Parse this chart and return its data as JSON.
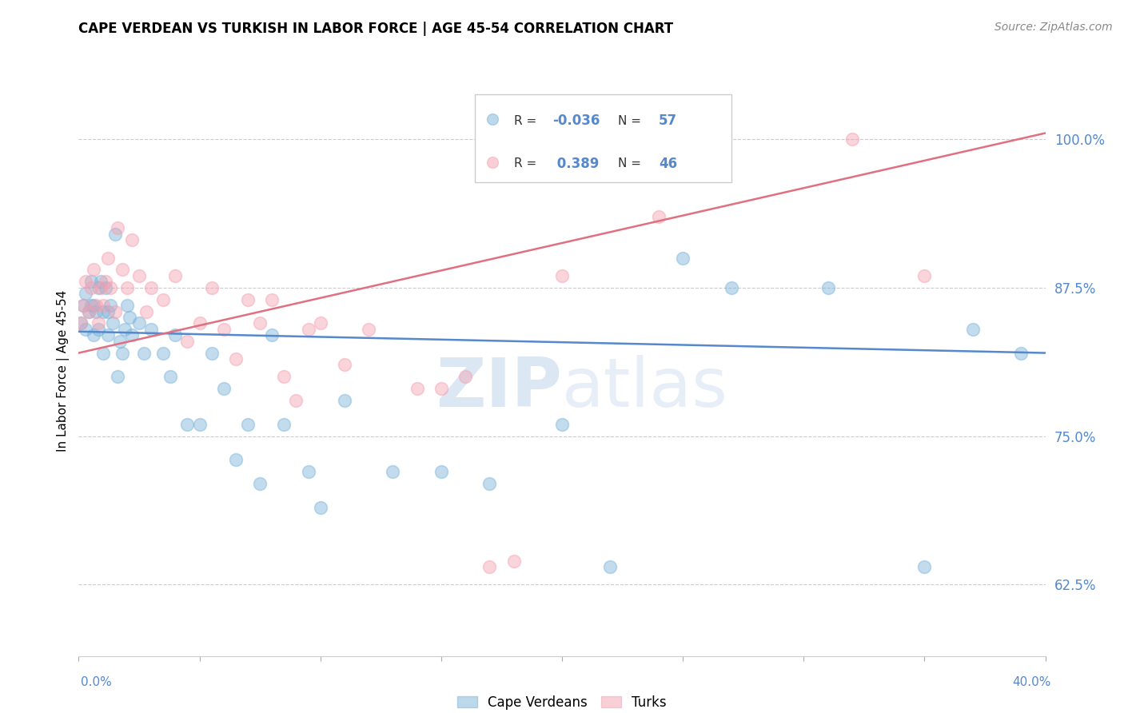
{
  "title": "CAPE VERDEAN VS TURKISH IN LABOR FORCE | AGE 45-54 CORRELATION CHART",
  "source": "Source: ZipAtlas.com",
  "ylabel": "In Labor Force | Age 45-54",
  "ytick_values": [
    0.625,
    0.75,
    0.875,
    1.0
  ],
  "xlim": [
    0.0,
    0.4
  ],
  "ylim": [
    0.565,
    1.045
  ],
  "blue_color": "#7ab3d9",
  "pink_color": "#f4a0b0",
  "blue_line_color": "#5588cc",
  "pink_line_color": "#e07080",
  "watermark_zip": "ZIP",
  "watermark_atlas": "atlas",
  "cape_verdean_x": [
    0.001,
    0.002,
    0.003,
    0.003,
    0.004,
    0.005,
    0.005,
    0.006,
    0.006,
    0.007,
    0.008,
    0.008,
    0.009,
    0.01,
    0.01,
    0.011,
    0.012,
    0.012,
    0.013,
    0.014,
    0.015,
    0.016,
    0.017,
    0.018,
    0.019,
    0.02,
    0.021,
    0.022,
    0.025,
    0.027,
    0.03,
    0.035,
    0.038,
    0.04,
    0.045,
    0.05,
    0.055,
    0.06,
    0.065,
    0.07,
    0.075,
    0.08,
    0.085,
    0.095,
    0.1,
    0.11,
    0.13,
    0.15,
    0.17,
    0.2,
    0.22,
    0.25,
    0.27,
    0.31,
    0.35,
    0.37,
    0.39
  ],
  "cape_verdean_y": [
    0.845,
    0.86,
    0.84,
    0.87,
    0.855,
    0.88,
    0.86,
    0.835,
    0.86,
    0.855,
    0.875,
    0.84,
    0.88,
    0.855,
    0.82,
    0.875,
    0.855,
    0.835,
    0.86,
    0.845,
    0.92,
    0.8,
    0.83,
    0.82,
    0.84,
    0.86,
    0.85,
    0.835,
    0.845,
    0.82,
    0.84,
    0.82,
    0.8,
    0.835,
    0.76,
    0.76,
    0.82,
    0.79,
    0.73,
    0.76,
    0.71,
    0.835,
    0.76,
    0.72,
    0.69,
    0.78,
    0.72,
    0.72,
    0.71,
    0.76,
    0.64,
    0.9,
    0.875,
    0.875,
    0.64,
    0.84,
    0.82
  ],
  "turkish_x": [
    0.001,
    0.002,
    0.003,
    0.004,
    0.005,
    0.006,
    0.007,
    0.008,
    0.009,
    0.01,
    0.011,
    0.012,
    0.013,
    0.015,
    0.016,
    0.018,
    0.02,
    0.022,
    0.025,
    0.028,
    0.03,
    0.035,
    0.04,
    0.045,
    0.05,
    0.055,
    0.06,
    0.065,
    0.07,
    0.075,
    0.08,
    0.085,
    0.09,
    0.095,
    0.1,
    0.11,
    0.12,
    0.14,
    0.15,
    0.16,
    0.17,
    0.18,
    0.2,
    0.24,
    0.32,
    0.35
  ],
  "turkish_y": [
    0.845,
    0.86,
    0.88,
    0.855,
    0.875,
    0.89,
    0.86,
    0.845,
    0.875,
    0.86,
    0.88,
    0.9,
    0.875,
    0.855,
    0.925,
    0.89,
    0.875,
    0.915,
    0.885,
    0.855,
    0.875,
    0.865,
    0.885,
    0.83,
    0.845,
    0.875,
    0.84,
    0.815,
    0.865,
    0.845,
    0.865,
    0.8,
    0.78,
    0.84,
    0.845,
    0.81,
    0.84,
    0.79,
    0.79,
    0.8,
    0.64,
    0.645,
    0.885,
    0.935,
    1.0,
    0.885
  ],
  "blue_trend_x": [
    0.0,
    0.4
  ],
  "blue_trend_y": [
    0.838,
    0.82
  ],
  "pink_trend_x": [
    0.0,
    0.4
  ],
  "pink_trend_y": [
    0.82,
    1.005
  ]
}
